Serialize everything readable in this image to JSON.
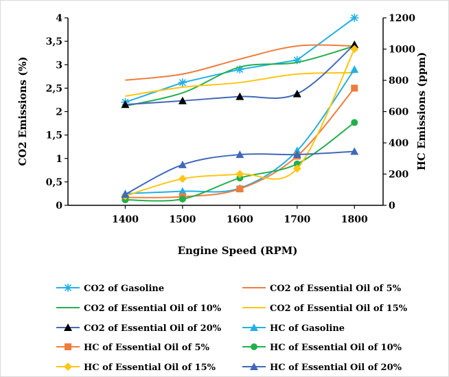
{
  "chart_data": {
    "type": "line",
    "title": "",
    "xlabel": "Engine Speed (RPM)",
    "ylabel": "CO2 Emissions (%)",
    "ylabel_right": "HC Emissions (ppm)",
    "x": [
      1400,
      1500,
      1600,
      1700,
      1800
    ],
    "x_ticks": [
      "1400",
      "1500",
      "1600",
      "1700",
      "1800"
    ],
    "xlim": [
      1300,
      1850
    ],
    "ylim": [
      0,
      4
    ],
    "ylim_right": [
      0,
      1200
    ],
    "y_ticks": [
      "0",
      "0,5",
      "1",
      "1,5",
      "2",
      "2,5",
      "3",
      "3,5",
      "4"
    ],
    "y_ticks_right": [
      "0",
      "200",
      "400",
      "600",
      "800",
      "1000",
      "1200"
    ],
    "grid": false,
    "legend_position": "bottom",
    "series": [
      {
        "name": "CO2 of Gasoline",
        "axis": "left",
        "color": "#1fb0e6",
        "marker": "asterisk",
        "smooth": false,
        "values": [
          2.2,
          2.62,
          2.9,
          3.1,
          4.0
        ]
      },
      {
        "name": "CO2 of Essential Oil of 5%",
        "axis": "left",
        "color": "#ee7d3c",
        "marker": "none",
        "smooth": true,
        "values": [
          2.67,
          2.8,
          3.12,
          3.4,
          3.4
        ]
      },
      {
        "name": "CO2 of Essential Oil of 10%",
        "axis": "left",
        "color": "#22b04c",
        "marker": "none",
        "smooth": true,
        "values": [
          2.12,
          2.4,
          2.95,
          3.05,
          3.4
        ]
      },
      {
        "name": "CO2 of Essential Oil of 15%",
        "axis": "left",
        "color": "#ffc512",
        "marker": "none",
        "smooth": true,
        "values": [
          2.33,
          2.52,
          2.62,
          2.8,
          2.83
        ]
      },
      {
        "name": "CO2 of Essential Oil of 20%",
        "axis": "left",
        "color": "#4068b8",
        "marker": "triangle-black",
        "smooth": true,
        "values": [
          2.15,
          2.23,
          2.32,
          2.38,
          3.43
        ]
      },
      {
        "name": "HC of Gasoline",
        "axis": "right",
        "color": "#1fb0e6",
        "marker": "triangle",
        "smooth": true,
        "values": [
          75,
          90,
          110,
          350,
          870
        ]
      },
      {
        "name": "HC of Essential Oil of 5%",
        "axis": "right",
        "color": "#ee7d3c",
        "marker": "square",
        "smooth": true,
        "values": [
          50,
          55,
          105,
          315,
          750
        ]
      },
      {
        "name": "HC of Essential Oil of 10%",
        "axis": "right",
        "color": "#22b04c",
        "marker": "circle",
        "smooth": true,
        "values": [
          35,
          40,
          175,
          265,
          530
        ]
      },
      {
        "name": "HC of Essential Oil of 15%",
        "axis": "right",
        "color": "#ffc512",
        "marker": "diamond",
        "smooth": true,
        "values": [
          60,
          170,
          200,
          235,
          1000
        ]
      },
      {
        "name": "HC of Essential Oil of 20%",
        "axis": "right",
        "color": "#4068b8",
        "marker": "triangle",
        "smooth": true,
        "values": [
          70,
          260,
          325,
          325,
          345
        ]
      }
    ]
  }
}
